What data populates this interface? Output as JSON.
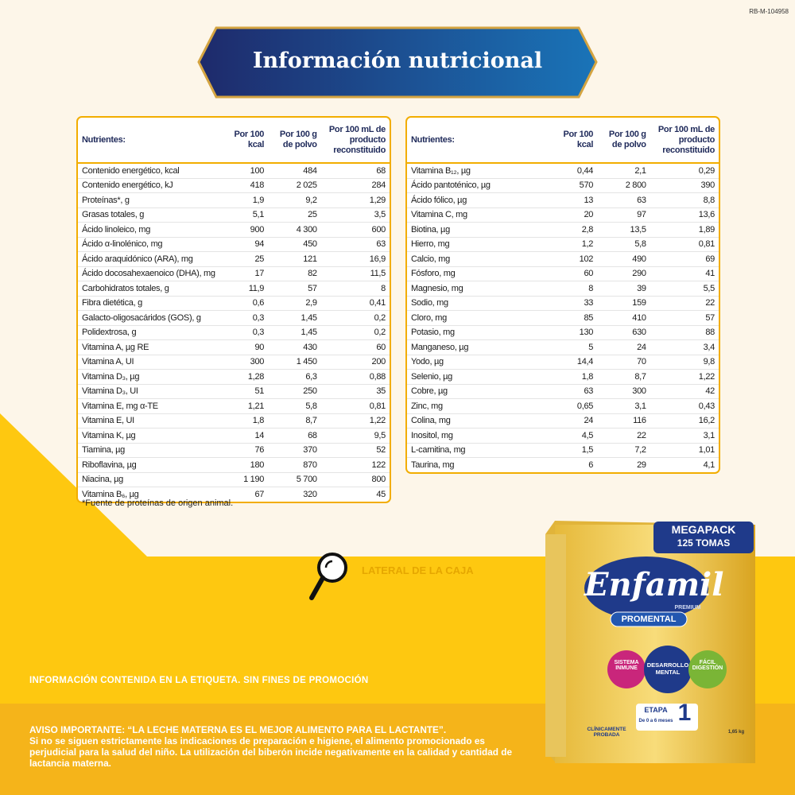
{
  "code": "RB-M-104958",
  "title": "Información nutricional",
  "tables": [
    {
      "headers": [
        "Nutrientes:",
        "Por 100 kcal",
        "Por 100 g de polvo",
        "Por 100 mL de producto reconstituido"
      ],
      "rows": [
        [
          "Contenido energético, kcal",
          "100",
          "484",
          "68"
        ],
        [
          "Contenido energético, kJ",
          "418",
          "2 025",
          "284"
        ],
        [
          "Proteínas*, g",
          "1,9",
          "9,2",
          "1,29"
        ],
        [
          "Grasas totales, g",
          "5,1",
          "25",
          "3,5"
        ],
        [
          "Ácido linoleico, mg",
          "900",
          "4 300",
          "600"
        ],
        [
          "Ácido α-linolénico, mg",
          "94",
          "450",
          "63"
        ],
        [
          "Ácido araquidónico (ARA), mg",
          "25",
          "121",
          "16,9"
        ],
        [
          "Ácido docosahexaenoico (DHA), mg",
          "17",
          "82",
          "11,5"
        ],
        [
          "Carbohidratos totales, g",
          "11,9",
          "57",
          "8"
        ],
        [
          "Fibra dietética, g",
          "0,6",
          "2,9",
          "0,41"
        ],
        [
          "Galacto-oligosacáridos (GOS), g",
          "0,3",
          "1,45",
          "0,2"
        ],
        [
          "Polidextrosa, g",
          "0,3",
          "1,45",
          "0,2"
        ],
        [
          "Vitamina A, µg RE",
          "90",
          "430",
          "60"
        ],
        [
          "Vitamina A, UI",
          "300",
          "1 450",
          "200"
        ],
        [
          "Vitamina D₃, µg",
          "1,28",
          "6,3",
          "0,88"
        ],
        [
          "Vitamina D₃, UI",
          "51",
          "250",
          "35"
        ],
        [
          "Vitamina E, mg α-TE",
          "1,21",
          "5,8",
          "0,81"
        ],
        [
          "Vitamina E, UI",
          "1,8",
          "8,7",
          "1,22"
        ],
        [
          "Vitamina K, µg",
          "14",
          "68",
          "9,5"
        ],
        [
          "Tiamina, µg",
          "76",
          "370",
          "52"
        ],
        [
          "Riboflavina, µg",
          "180",
          "870",
          "122"
        ],
        [
          "Niacina, µg",
          "1 190",
          "5 700",
          "800"
        ],
        [
          "Vitamina B₆, µg",
          "67",
          "320",
          "45"
        ]
      ]
    },
    {
      "headers": [
        "Nutrientes:",
        "Por 100 kcal",
        "Por 100 g de polvo",
        "Por 100 mL de producto reconstituido"
      ],
      "rows": [
        [
          "Vitamina B₁₂, µg",
          "0,44",
          "2,1",
          "0,29"
        ],
        [
          "Ácido pantoténico, µg",
          "570",
          "2 800",
          "390"
        ],
        [
          "Ácido fólico, µg",
          "13",
          "63",
          "8,8"
        ],
        [
          "Vitamina C, mg",
          "20",
          "97",
          "13,6"
        ],
        [
          "Biotina, µg",
          "2,8",
          "13,5",
          "1,89"
        ],
        [
          "Hierro, mg",
          "1,2",
          "5,8",
          "0,81"
        ],
        [
          "Calcio, mg",
          "102",
          "490",
          "69"
        ],
        [
          "Fósforo, mg",
          "60",
          "290",
          "41"
        ],
        [
          "Magnesio, mg",
          "8",
          "39",
          "5,5"
        ],
        [
          "Sodio, mg",
          "33",
          "159",
          "22"
        ],
        [
          "Cloro, mg",
          "85",
          "410",
          "57"
        ],
        [
          "Potasio, mg",
          "130",
          "630",
          "88"
        ],
        [
          "Manganeso, µg",
          "5",
          "24",
          "3,4"
        ],
        [
          "Yodo, µg",
          "14,4",
          "70",
          "9,8"
        ],
        [
          "Selenio, µg",
          "1,8",
          "8,7",
          "1,22"
        ],
        [
          "Cobre, µg",
          "63",
          "300",
          "42"
        ],
        [
          "Zinc, mg",
          "0,65",
          "3,1",
          "0,43"
        ],
        [
          "Colina, mg",
          "24",
          "116",
          "16,2"
        ],
        [
          "Inositol, mg",
          "4,5",
          "22",
          "3,1"
        ],
        [
          "L-carnitina, mg",
          "1,5",
          "7,2",
          "1,01"
        ],
        [
          "Taurina, mg",
          "6",
          "29",
          "4,1"
        ]
      ]
    }
  ],
  "footnote": "*Fuente de proteínas de origen animal.",
  "lens_label": "LATERAL DE LA CAJA",
  "disclaimer": "INFORMACIÓN CONTENIDA EN LA ETIQUETA. SIN FINES DE PROMOCIÓN",
  "warning_title": "AVISO IMPORTANTE: “LA LECHE MATERNA ES EL MEJOR ALIMENTO PARA EL LACTANTE”.",
  "warning_text": "Si no se siguen estrictamente las indicaciones de preparación e higiene, el alimento promocionado es perjudicial para la salud del niño. La utilización del biberón incide negativamente en la calidad y cantidad de lactancia materna.",
  "product": {
    "badge_top": "MEGAPACK",
    "badge_bottom": "125 TOMAS",
    "brand": "Enfamil",
    "tier": "PREMIUM",
    "line": "PROMENTAL",
    "benefits": [
      "SISTEMA INMUNE",
      "DESARROLLO MENTAL",
      "FÁCIL DIGESTIÓN"
    ],
    "stage_label": "ETAPA",
    "stage": "1",
    "stage_age": "De 0 a 6 meses",
    "claim": "CLÍNICAMENTE PROBADA",
    "weight": "1,65 kg"
  }
}
